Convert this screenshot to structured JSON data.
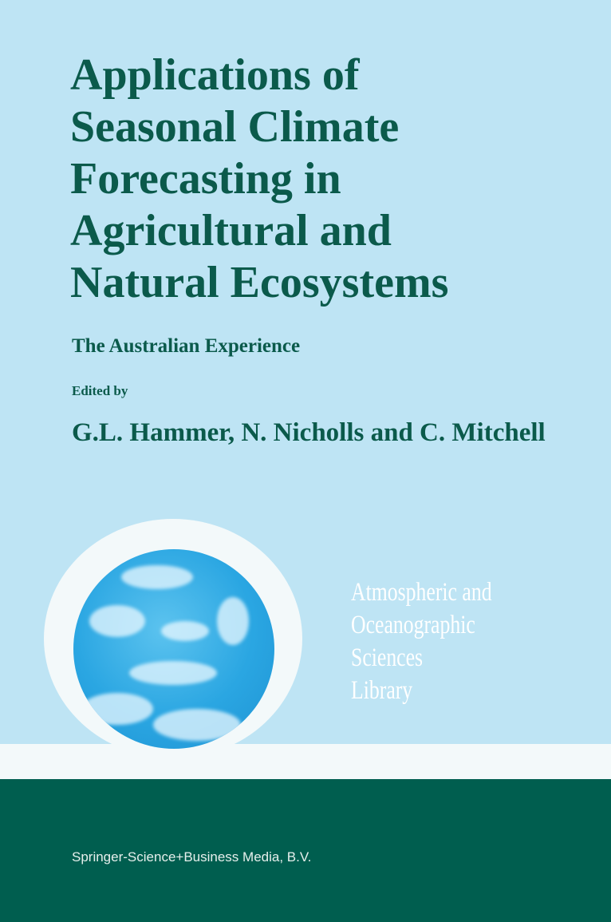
{
  "cover": {
    "title_lines": [
      "Applications of",
      "Seasonal Climate",
      "Forecasting in",
      "Agricultural and",
      "Natural Ecosystems"
    ],
    "subtitle": "The Australian Experience",
    "edited_by": "Edited by",
    "authors": "G.L. Hammer, N. Nicholls and C. Mitchell",
    "series_lines": [
      "Atmospheric and",
      "Oceanographic",
      "Sciences",
      "Library"
    ],
    "publisher": "Springer-Science+Business Media, B.V.",
    "colors": {
      "background": "#bee4f4",
      "title": "#0b5a4b",
      "footer": "#005e4f",
      "band": "#f3f9fa"
    }
  }
}
